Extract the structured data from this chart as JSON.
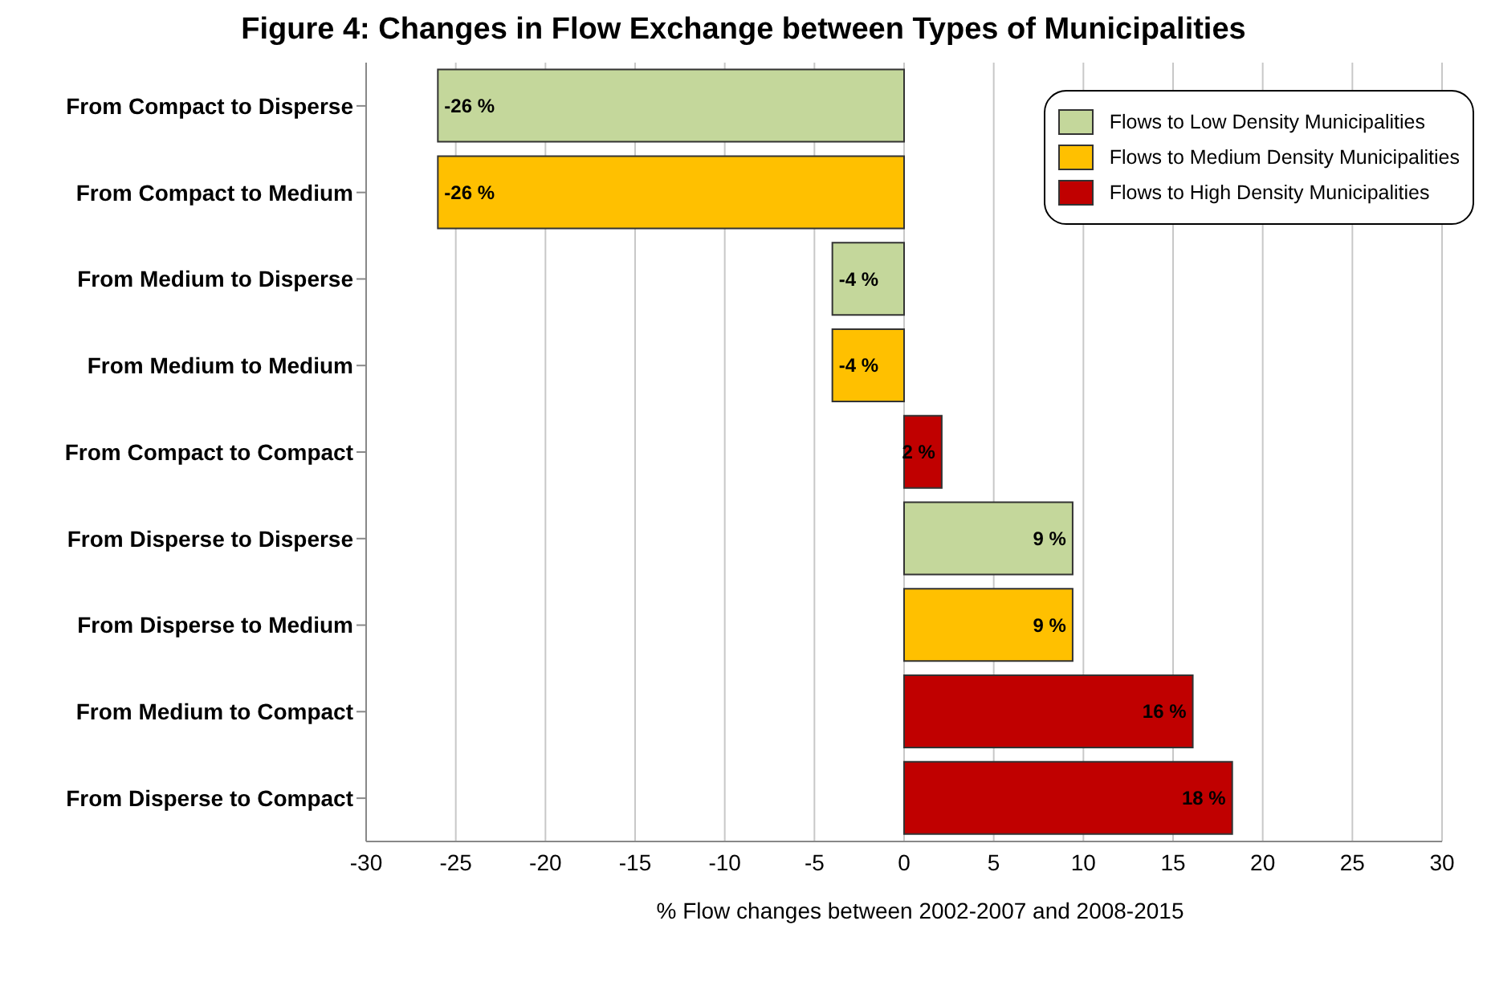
{
  "chart_data": {
    "type": "bar",
    "orientation": "horizontal",
    "stacked": true,
    "title": "Figure 4: Changes in Flow Exchange between Types of Municipalities",
    "xlabel": "% Flow changes between 2002-2007 and 2008-2015",
    "categories": [
      "From Compact to Disperse",
      "From Compact to Medium",
      "From Medium to Disperse",
      "From Medium to Medium",
      "From Compact to Compact",
      "From Disperse to Disperse",
      "From Disperse to Medium",
      "From Medium to Compact",
      "From Disperse to Compact"
    ],
    "series": [
      {
        "name": "Flows to Low Density Municipalities",
        "color": "#c4d79b",
        "values": [
          -26,
          null,
          -4,
          null,
          null,
          9.4,
          null,
          null,
          null
        ],
        "value_labels": [
          "-26 %",
          null,
          "-4 %",
          null,
          null,
          "9 %",
          null,
          null,
          null
        ]
      },
      {
        "name": "Flows to Medium Density Municipalities",
        "color": "#ffc000",
        "values": [
          null,
          -26,
          null,
          -4,
          null,
          null,
          9.4,
          null,
          null
        ],
        "value_labels": [
          null,
          "-26 %",
          null,
          "-4 %",
          null,
          null,
          "9 %",
          null,
          null
        ]
      },
      {
        "name": "Flows to High Density Municipalities",
        "color": "#c00000",
        "values": [
          null,
          null,
          null,
          null,
          2.1,
          null,
          null,
          16.1,
          18.3
        ],
        "value_labels": [
          null,
          null,
          null,
          null,
          "2 %",
          null,
          null,
          "16 %",
          "18 %"
        ]
      }
    ],
    "xlim": [
      -30,
      30
    ],
    "xticks": [
      -30,
      -25,
      -20,
      -15,
      -10,
      -5,
      0,
      5,
      10,
      15,
      20,
      25,
      30
    ],
    "grid": "x",
    "legend": "top right"
  }
}
